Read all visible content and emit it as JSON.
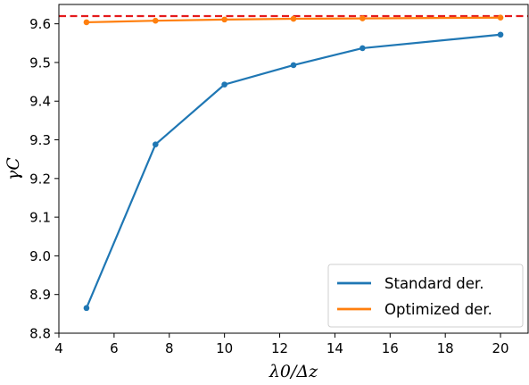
{
  "chart_data": {
    "type": "line",
    "xlabel": "λ0/Δz",
    "ylabel": "γC",
    "xlim": [
      4,
      21
    ],
    "ylim": [
      8.8,
      9.65
    ],
    "xticks": [
      4,
      6,
      8,
      10,
      12,
      14,
      16,
      18,
      20
    ],
    "yticks": [
      8.8,
      8.9,
      9.0,
      9.1,
      9.2,
      9.3,
      9.4,
      9.5,
      9.6
    ],
    "xtick_labels": [
      "4",
      "6",
      "8",
      "10",
      "12",
      "14",
      "16",
      "18",
      "20"
    ],
    "ytick_labels": [
      "8.8",
      "8.9",
      "9.0",
      "9.1",
      "9.2",
      "9.3",
      "9.4",
      "9.5",
      "9.6"
    ],
    "grid": false,
    "legend_position": "lower-right",
    "x": [
      5,
      7.5,
      10,
      12.5,
      15,
      20
    ],
    "series": [
      {
        "name": "Standard der.",
        "color": "#1f77b4",
        "values": [
          8.865,
          9.288,
          9.443,
          9.493,
          9.537,
          9.572
        ]
      },
      {
        "name": "Optimized der.",
        "color": "#ff7f0e",
        "values": [
          9.604,
          9.608,
          9.611,
          9.613,
          9.614,
          9.616
        ]
      }
    ],
    "reference_line": {
      "y": 9.62,
      "color": "#e41a1c",
      "style": "dashed"
    }
  }
}
